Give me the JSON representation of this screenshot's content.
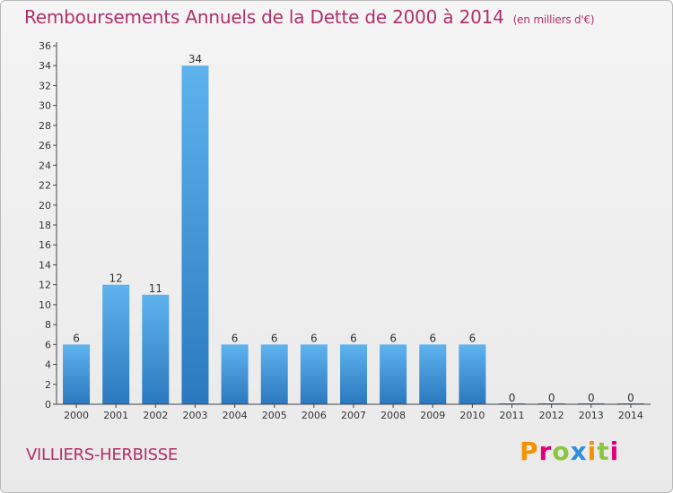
{
  "chart_data": {
    "type": "bar",
    "title": "Remboursements Annuels de la Dette de 2000 à 2014",
    "subtitle": "(en milliers d'€)",
    "categories": [
      "2000",
      "2001",
      "2002",
      "2003",
      "2004",
      "2005",
      "2006",
      "2007",
      "2008",
      "2009",
      "2010",
      "2011",
      "2012",
      "2013",
      "2014"
    ],
    "values": [
      6,
      12,
      11,
      34,
      6,
      6,
      6,
      6,
      6,
      6,
      6,
      0,
      0,
      0,
      0
    ],
    "ylim": [
      0,
      36
    ],
    "yticks": [
      0,
      2,
      4,
      6,
      8,
      10,
      12,
      14,
      16,
      18,
      20,
      22,
      24,
      26,
      28,
      30,
      32,
      34,
      36
    ],
    "grid": false,
    "bar_color": "#3d8fd6"
  },
  "footer": {
    "commune": "VILLIERS-HERBISSE",
    "brand": "Proxiti"
  },
  "colors": {
    "title": "#b0306a",
    "brand_letters": [
      "#f39200",
      "#e2007a",
      "#8cc63f",
      "#2f8fd6",
      "#f39200",
      "#8cc63f",
      "#e2007a"
    ]
  }
}
